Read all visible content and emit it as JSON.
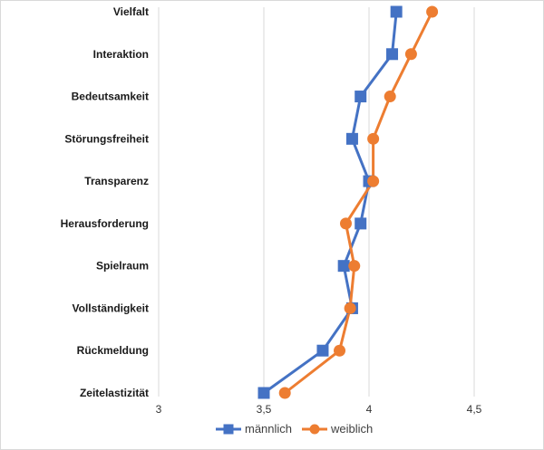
{
  "chart_data": {
    "type": "line",
    "orientation": "horizontal",
    "categories": [
      "Vielfalt",
      "Interaktion",
      "Bedeutsamkeit",
      "Störungsfreiheit",
      "Transparenz",
      "Herausforderung",
      "Spielraum",
      "Vollständigkeit",
      "Rückmeldung",
      "Zeitelastizität"
    ],
    "series": [
      {
        "name": "männlich",
        "color": "#4472C4",
        "marker": "square",
        "values": [
          4.13,
          4.11,
          3.96,
          3.92,
          4.0,
          3.96,
          3.88,
          3.92,
          3.78,
          3.5
        ]
      },
      {
        "name": "weiblich",
        "color": "#ED7D31",
        "marker": "circle",
        "values": [
          4.3,
          4.2,
          4.1,
          4.02,
          4.02,
          3.89,
          3.93,
          3.91,
          3.86,
          3.6
        ]
      }
    ],
    "x_axis": {
      "ticks": [
        "3",
        "3,5",
        "4",
        "4,5"
      ],
      "tick_values": [
        3,
        3.5,
        4,
        4.5
      ],
      "range": [
        3,
        4.5
      ]
    },
    "grid": "vertical",
    "legend": "bottom-center"
  }
}
